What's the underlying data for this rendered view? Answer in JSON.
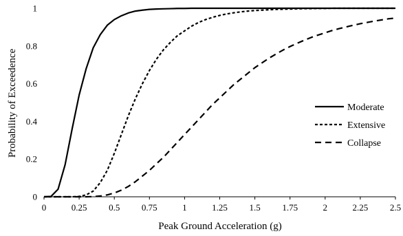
{
  "chart_data": {
    "type": "line",
    "xlabel": "Peak Ground Acceleration (g)",
    "ylabel": "Probability of Exceedence",
    "xlim": [
      0,
      2.5
    ],
    "ylim": [
      0,
      1
    ],
    "x_ticks": [
      0,
      0.25,
      0.5,
      0.75,
      1,
      1.25,
      1.5,
      1.75,
      2,
      2.25,
      2.5
    ],
    "x_tick_labels": [
      "0",
      "0.25",
      "0.5",
      "0.75",
      "1",
      "1.25",
      "1.5",
      "1.75",
      "2",
      "2.25",
      "2.5"
    ],
    "y_ticks": [
      0,
      0.2,
      0.4,
      0.6,
      0.8,
      1
    ],
    "y_tick_labels": [
      "0",
      "0.2",
      "0.4",
      "0.6",
      "0.8",
      "1"
    ],
    "grid": false,
    "legend_position": "right",
    "x": [
      0,
      0.05,
      0.1,
      0.15,
      0.2,
      0.25,
      0.3,
      0.35,
      0.4,
      0.45,
      0.5,
      0.55,
      0.6,
      0.65,
      0.7,
      0.75,
      0.8,
      0.85,
      0.9,
      0.95,
      1.0,
      1.05,
      1.1,
      1.15,
      1.2,
      1.25,
      1.3,
      1.35,
      1.4,
      1.45,
      1.5,
      1.55,
      1.6,
      1.65,
      1.7,
      1.75,
      1.8,
      1.85,
      1.9,
      1.95,
      2.0,
      2.05,
      2.1,
      2.15,
      2.2,
      2.25,
      2.3,
      2.35,
      2.4,
      2.45,
      2.5
    ],
    "series": [
      {
        "name": "Moderate",
        "style": "solid",
        "color": "#000000",
        "values": [
          0,
          0.002,
          0.04,
          0.17,
          0.36,
          0.54,
          0.68,
          0.79,
          0.86,
          0.91,
          0.94,
          0.96,
          0.975,
          0.985,
          0.99,
          0.994,
          0.996,
          0.997,
          0.998,
          0.999,
          0.999,
          1,
          1,
          1,
          1,
          1,
          1,
          1,
          1,
          1,
          1,
          1,
          1,
          1,
          1,
          1,
          1,
          1,
          1,
          1,
          1,
          1,
          1,
          1,
          1,
          1,
          1,
          1,
          1,
          1,
          1
        ]
      },
      {
        "name": "Extensive",
        "style": "dotted",
        "color": "#000000",
        "values": [
          0,
          0,
          0,
          0,
          0,
          0.002,
          0.01,
          0.03,
          0.075,
          0.14,
          0.23,
          0.33,
          0.43,
          0.52,
          0.6,
          0.67,
          0.73,
          0.78,
          0.82,
          0.855,
          0.88,
          0.905,
          0.925,
          0.94,
          0.952,
          0.962,
          0.97,
          0.976,
          0.981,
          0.985,
          0.988,
          0.99,
          0.992,
          0.994,
          0.995,
          0.996,
          0.997,
          0.998,
          0.998,
          0.999,
          0.999,
          1,
          1,
          1,
          1,
          1,
          1,
          1,
          1,
          1,
          1
        ]
      },
      {
        "name": "Collapse",
        "style": "dashed",
        "color": "#000000",
        "values": [
          0,
          0,
          0,
          0,
          0,
          0,
          0,
          0.001,
          0.004,
          0.01,
          0.02,
          0.035,
          0.055,
          0.08,
          0.11,
          0.14,
          0.175,
          0.21,
          0.25,
          0.29,
          0.33,
          0.37,
          0.41,
          0.45,
          0.49,
          0.525,
          0.56,
          0.595,
          0.625,
          0.655,
          0.685,
          0.71,
          0.735,
          0.757,
          0.778,
          0.797,
          0.814,
          0.83,
          0.845,
          0.858,
          0.87,
          0.882,
          0.892,
          0.901,
          0.91,
          0.918,
          0.925,
          0.932,
          0.938,
          0.944,
          0.948
        ]
      }
    ]
  }
}
